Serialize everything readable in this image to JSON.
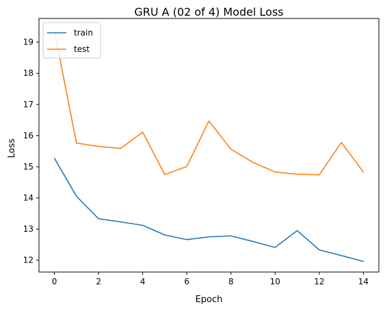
{
  "chart_data": {
    "type": "line",
    "title": "GRU A (02 of 4) Model Loss",
    "xlabel": "Epoch",
    "ylabel": "Loss",
    "x": [
      0,
      1,
      2,
      3,
      4,
      5,
      6,
      7,
      8,
      9,
      10,
      11,
      12,
      13,
      14
    ],
    "xlim": [
      -0.7,
      14.7
    ],
    "ylim": [
      11.62,
      19.76
    ],
    "xticks": [
      0,
      2,
      4,
      6,
      8,
      10,
      12,
      14
    ],
    "yticks": [
      12,
      13,
      14,
      15,
      16,
      17,
      18,
      19
    ],
    "grid": false,
    "legend_position": "upper-left",
    "series": [
      {
        "name": "train",
        "color": "#1f77b4",
        "values": [
          15.27,
          14.05,
          13.33,
          13.23,
          13.12,
          12.81,
          12.66,
          12.75,
          12.78,
          12.6,
          12.41,
          12.95,
          12.33,
          12.15,
          11.96
        ]
      },
      {
        "name": "test",
        "color": "#ff7f0e",
        "values": [
          19.35,
          15.76,
          15.65,
          15.59,
          16.11,
          14.75,
          15.01,
          16.47,
          15.56,
          15.14,
          14.83,
          14.76,
          14.74,
          15.78,
          14.83
        ]
      }
    ]
  }
}
